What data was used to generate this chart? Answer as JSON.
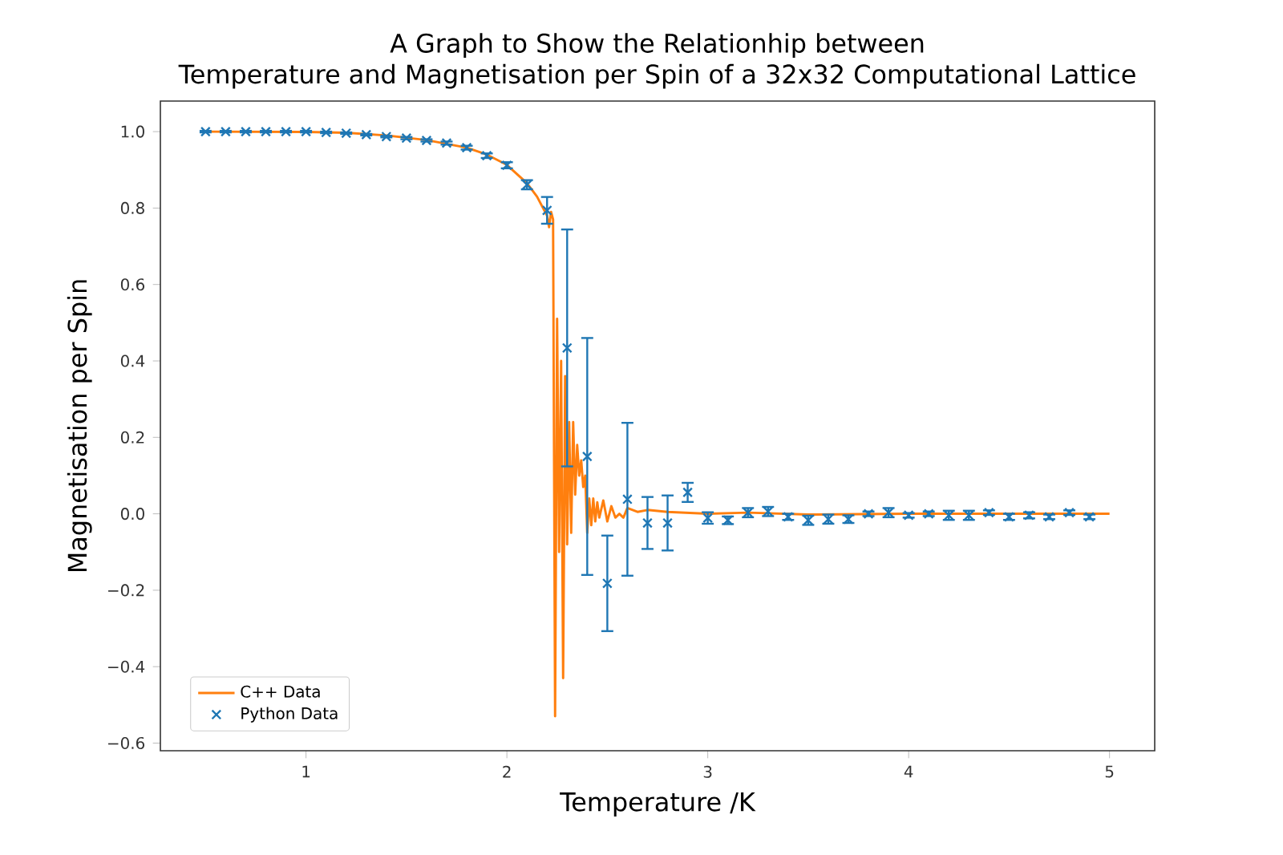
{
  "chart_data": {
    "type": "line",
    "title": "A Graph to Show the Relationhip between",
    "subtitle": "Temperature and Magnetisation per Spin of a 32x32 Computational Lattice",
    "xlabel": "Temperature /K",
    "ylabel": "Magnetisation per Spin",
    "xlim": [
      0.275,
      5.225
    ],
    "ylim": [
      -0.62,
      1.08
    ],
    "xticks": [
      1,
      2,
      3,
      4,
      5
    ],
    "yticks": [
      {
        "value": -0.6,
        "label": "−0.6"
      },
      {
        "value": -0.4,
        "label": "−0.4"
      },
      {
        "value": -0.2,
        "label": "−0.2"
      },
      {
        "value": 0,
        "label": "0.0"
      },
      {
        "value": 0.2,
        "label": "0.2"
      },
      {
        "value": 0.4,
        "label": "0.4"
      },
      {
        "value": 0.6,
        "label": "0.6"
      },
      {
        "value": 0.8,
        "label": "0.8"
      },
      {
        "value": 1.0,
        "label": "1.0"
      }
    ],
    "grid": false,
    "legend": "bottom left",
    "series": [
      {
        "name": "C++ Data",
        "color": "#ff7f0e",
        "marker": "none",
        "line_style": "solid",
        "x": [
          0.5,
          1.0,
          1.2,
          1.4,
          1.6,
          1.8,
          1.9,
          2.0,
          2.1,
          2.15,
          2.2,
          2.21,
          2.22,
          2.23,
          2.24,
          2.25,
          2.26,
          2.27,
          2.28,
          2.29,
          2.3,
          2.31,
          2.32,
          2.33,
          2.34,
          2.35,
          2.36,
          2.37,
          2.38,
          2.39,
          2.4,
          2.41,
          2.42,
          2.43,
          2.44,
          2.45,
          2.46,
          2.48,
          2.5,
          2.52,
          2.54,
          2.56,
          2.58,
          2.6,
          2.65,
          2.7,
          2.8,
          3.0,
          3.2,
          3.5,
          4.0,
          4.5,
          5.0
        ],
        "values": [
          1.0,
          0.999,
          0.997,
          0.99,
          0.978,
          0.958,
          0.94,
          0.913,
          0.865,
          0.83,
          0.78,
          0.75,
          0.79,
          0.77,
          -0.53,
          0.51,
          -0.1,
          0.4,
          -0.43,
          0.36,
          -0.08,
          0.24,
          -0.05,
          0.24,
          0.05,
          0.18,
          0.1,
          0.14,
          0.07,
          0.1,
          -0.05,
          0.04,
          -0.03,
          0.04,
          -0.02,
          0.03,
          -0.01,
          0.035,
          -0.02,
          0.02,
          -0.01,
          0.0,
          -0.01,
          0.015,
          0.005,
          0.01,
          0.005,
          0.0,
          0.003,
          -0.002,
          0.0,
          0.0,
          0.0
        ]
      },
      {
        "name": "Python Data",
        "type": "scatter",
        "color": "#1f77b4",
        "marker": "cross",
        "x": [
          0.5,
          0.6,
          0.7,
          0.8,
          0.9,
          1.0,
          1.1,
          1.2,
          1.3,
          1.4,
          1.5,
          1.6,
          1.7,
          1.8,
          1.9,
          2.0,
          2.1,
          2.2,
          2.3,
          2.4,
          2.5,
          2.6,
          2.7,
          2.8,
          2.9,
          3.0,
          3.1,
          3.2,
          3.3,
          3.4,
          3.5,
          3.6,
          3.7,
          3.8,
          3.9,
          4.0,
          4.1,
          4.2,
          4.3,
          4.4,
          4.5,
          4.6,
          4.7,
          4.8,
          4.9
        ],
        "values": [
          1.0,
          1.0,
          1.0,
          1.0,
          1.0,
          1.0,
          0.998,
          0.996,
          0.992,
          0.987,
          0.983,
          0.977,
          0.97,
          0.958,
          0.937,
          0.912,
          0.861,
          0.794,
          0.434,
          0.15,
          -0.182,
          0.038,
          -0.024,
          -0.024,
          0.056,
          -0.011,
          -0.017,
          0.003,
          0.006,
          -0.008,
          -0.017,
          -0.014,
          -0.014,
          0.0,
          0.003,
          -0.004,
          0.0,
          -0.004,
          -0.004,
          0.003,
          -0.008,
          -0.004,
          -0.008,
          0.003,
          -0.008
        ],
        "errors": [
          0.002,
          0.002,
          0.002,
          0.002,
          0.002,
          0.002,
          0.002,
          0.002,
          0.002,
          0.002,
          0.003,
          0.003,
          0.004,
          0.005,
          0.006,
          0.008,
          0.012,
          0.035,
          0.31,
          0.31,
          0.125,
          0.2,
          0.068,
          0.072,
          0.025,
          0.015,
          0.01,
          0.012,
          0.012,
          0.008,
          0.012,
          0.012,
          0.01,
          0.006,
          0.012,
          0.006,
          0.006,
          0.012,
          0.012,
          0.006,
          0.008,
          0.008,
          0.006,
          0.006,
          0.006
        ]
      }
    ]
  }
}
